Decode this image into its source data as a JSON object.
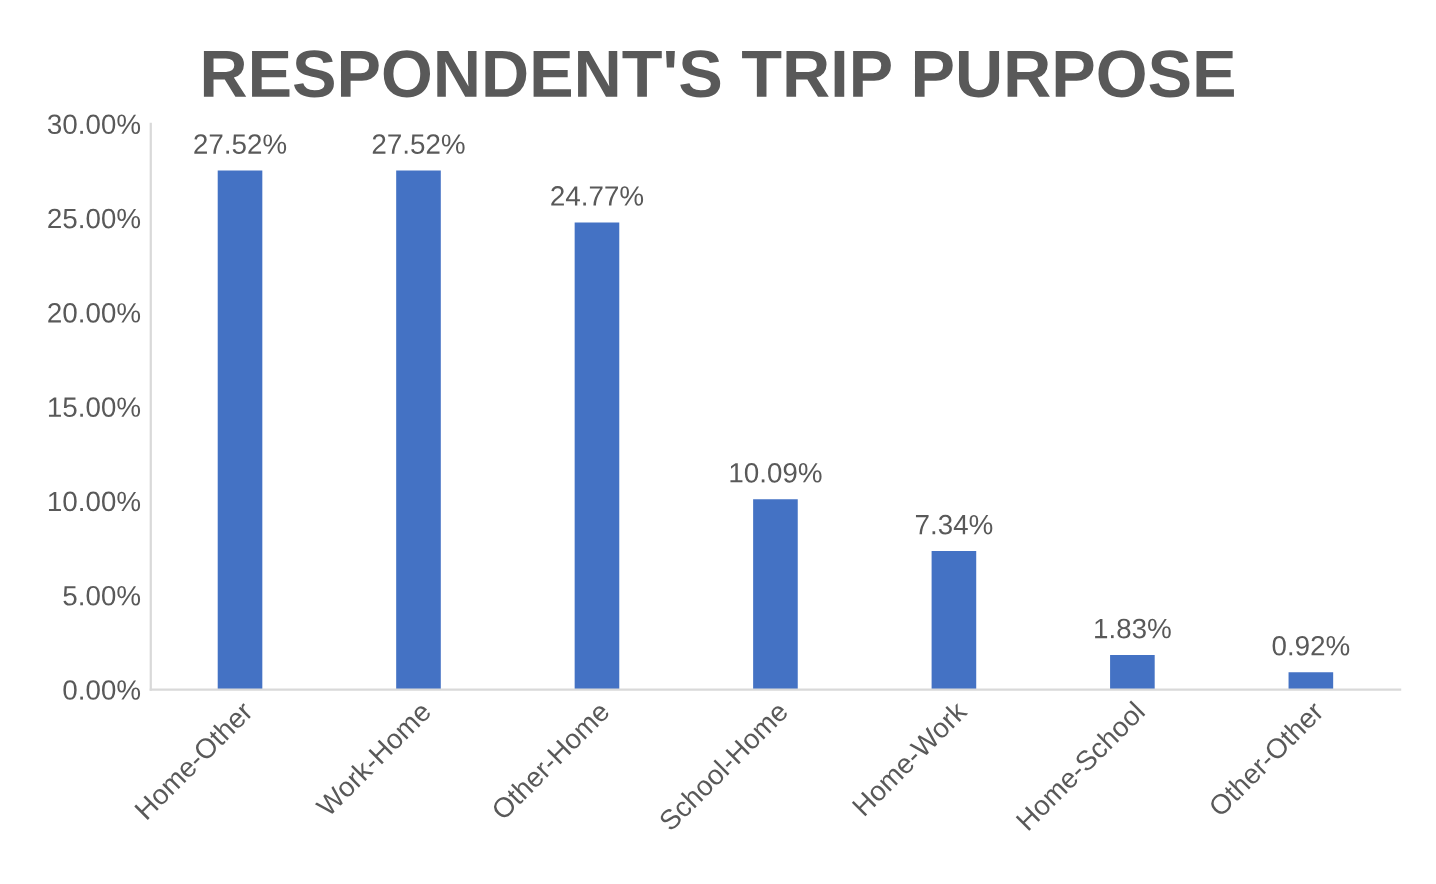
{
  "chart_data": {
    "type": "bar",
    "title": "RESPONDENT'S TRIP PURPOSE",
    "categories": [
      "Home-Other",
      "Work-Home",
      "Other-Home",
      "School-Home",
      "Home-Work",
      "Home-School",
      "Other-Other"
    ],
    "values": [
      27.52,
      27.52,
      24.77,
      10.09,
      7.34,
      1.83,
      0.92
    ],
    "value_labels": [
      "27.52%",
      "27.52%",
      "24.77%",
      "10.09%",
      "7.34%",
      "1.83%",
      "0.92%"
    ],
    "color": "#4472c4",
    "ylim": [
      0,
      30
    ],
    "yticks": [
      {
        "value": 0,
        "label": "0.00%"
      },
      {
        "value": 5,
        "label": "5.00%"
      },
      {
        "value": 10,
        "label": "10.00%"
      },
      {
        "value": 15,
        "label": "15.00%"
      },
      {
        "value": 20,
        "label": "20.00%"
      },
      {
        "value": 25,
        "label": "25.00%"
      },
      {
        "value": 30,
        "label": "30.00%"
      }
    ],
    "grid": false
  }
}
